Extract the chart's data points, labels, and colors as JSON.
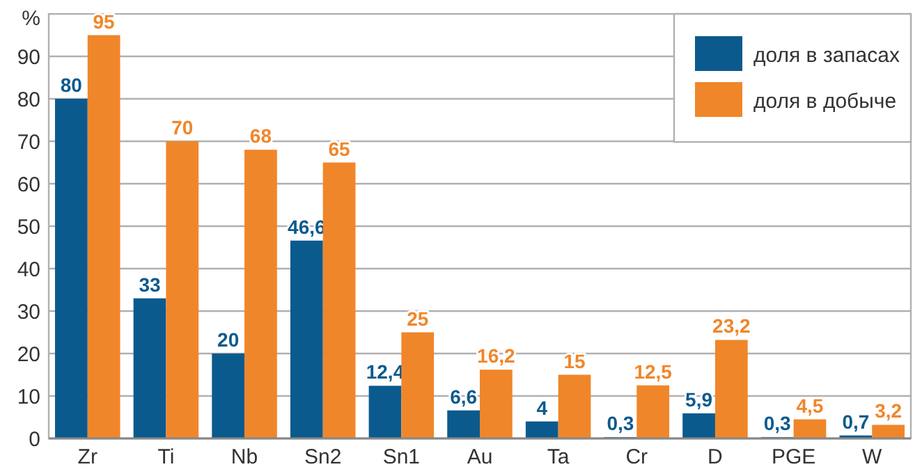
{
  "chart_data": {
    "type": "bar",
    "ylabel": "%",
    "categories": [
      "Zr",
      "Ti",
      "Nb",
      "Sn2",
      "Sn1",
      "Au",
      "Ta",
      "Cr",
      "D",
      "PGE",
      "W"
    ],
    "series": [
      {
        "name": "доля в запасах",
        "color": "#0b5a8e",
        "values": [
          80,
          33,
          20,
          46.6,
          12.4,
          6.6,
          4,
          0.3,
          5.9,
          0.3,
          0.7
        ],
        "value_labels": [
          "80",
          "33",
          "20",
          "46,6",
          "12,4",
          "6,6",
          "4",
          "0,3",
          "5,9",
          "0,3",
          "0,7"
        ]
      },
      {
        "name": "доля в добыче",
        "color": "#f0862a",
        "values": [
          95,
          70,
          68,
          65,
          25,
          16.2,
          15,
          12.5,
          23.2,
          4.5,
          3.2
        ],
        "value_labels": [
          "95",
          "70",
          "68",
          "65",
          "25",
          "16,2",
          "15",
          "12,5",
          "23,2",
          "4,5",
          "3,2"
        ]
      }
    ],
    "ylim": [
      0,
      100
    ],
    "yticks": [
      0,
      10,
      20,
      30,
      40,
      50,
      60,
      70,
      80,
      90
    ],
    "grid": "y",
    "legend": "top right"
  }
}
